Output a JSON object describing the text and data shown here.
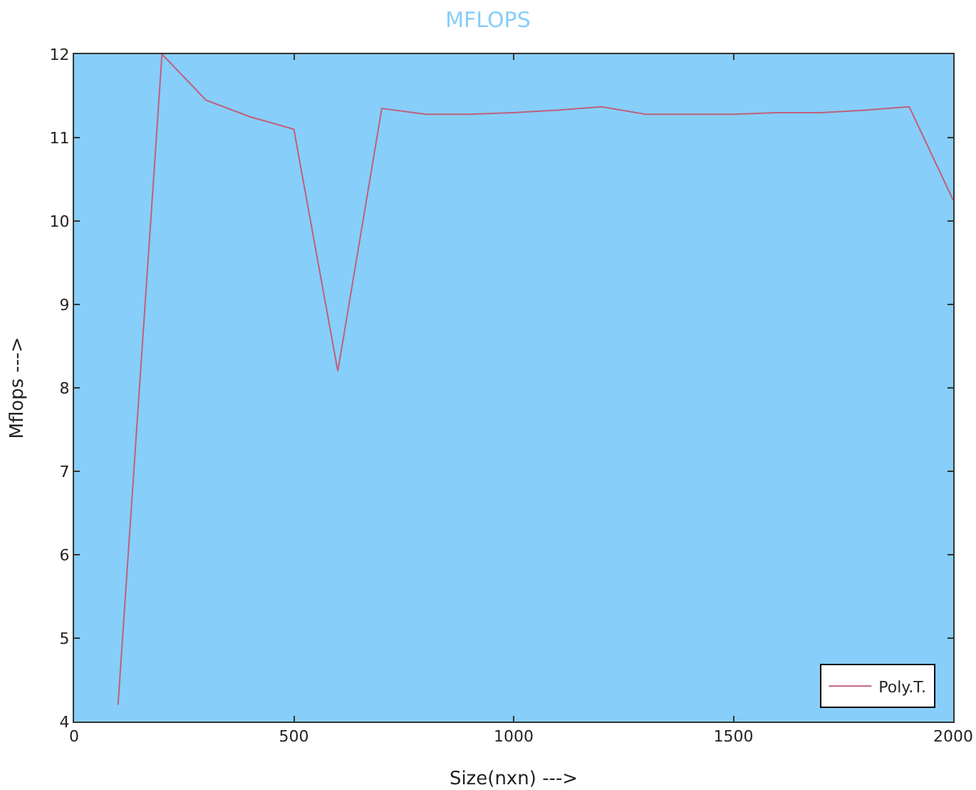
{
  "chart_data": {
    "type": "line",
    "title": "MFLOPS",
    "xlabel": "Size(nxn) --->",
    "ylabel": "Mflops --->",
    "x": [
      100,
      200,
      300,
      400,
      500,
      600,
      700,
      800,
      900,
      1000,
      1100,
      1200,
      1300,
      1400,
      1500,
      1600,
      1700,
      1800,
      1900,
      2000
    ],
    "series": [
      {
        "name": "Poly.T.",
        "color": "#c0607a",
        "values": [
          4.2,
          12.0,
          11.45,
          11.25,
          11.1,
          8.2,
          11.35,
          11.28,
          11.28,
          11.3,
          11.33,
          11.37,
          11.28,
          11.28,
          11.28,
          11.3,
          11.3,
          11.33,
          11.37,
          10.25
        ]
      }
    ],
    "xlim": [
      0,
      2000
    ],
    "xticks": [
      0,
      500,
      1000,
      1500,
      2000
    ],
    "ylim": [
      4,
      12
    ],
    "yticks": [
      4,
      5,
      6,
      7,
      8,
      9,
      10,
      11,
      12
    ],
    "grid": false,
    "legend": "bottom right",
    "marker": "none",
    "line_style": "solid"
  }
}
